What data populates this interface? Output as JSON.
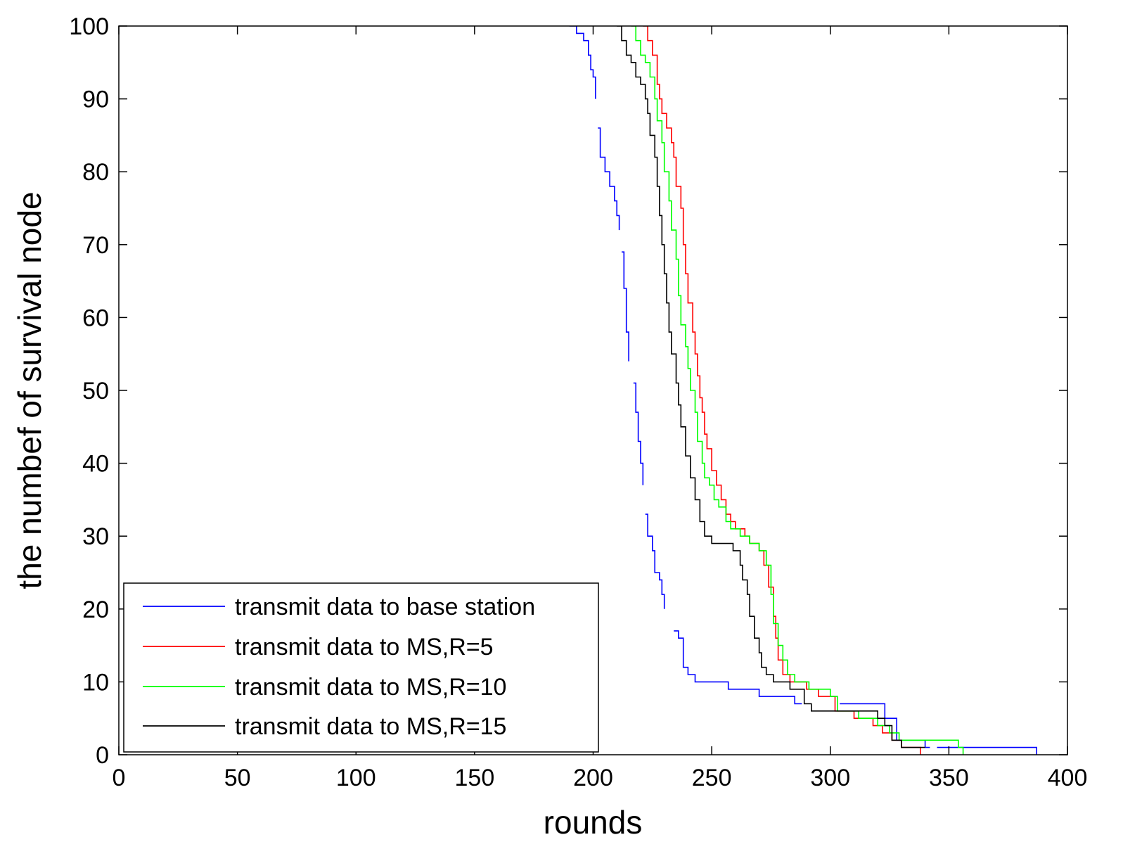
{
  "chart_data": {
    "type": "line",
    "title": "",
    "xlabel": "rounds",
    "ylabel": "the numbef of survival node",
    "xlim": [
      0,
      400
    ],
    "ylim": [
      0,
      100
    ],
    "xticks": [
      0,
      50,
      100,
      150,
      200,
      250,
      300,
      350,
      400
    ],
    "yticks": [
      0,
      10,
      20,
      30,
      40,
      50,
      60,
      70,
      80,
      90,
      100
    ],
    "grid": false,
    "legend_position": "bottom-left",
    "series": [
      {
        "name": "transmit data to base station",
        "color": "#0000ff",
        "segments": [
          [
            [
              190,
              100
            ],
            [
              193,
              99
            ],
            [
              196,
              98
            ],
            [
              198,
              96
            ],
            [
              199,
              94
            ],
            [
              200,
              93
            ],
            [
              201,
              90
            ]
          ],
          [
            [
              202,
              86
            ],
            [
              203,
              82
            ],
            [
              205,
              80
            ],
            [
              207,
              78
            ],
            [
              209,
              76
            ],
            [
              210,
              74
            ],
            [
              211,
              72
            ]
          ],
          [
            [
              212,
              69
            ],
            [
              213,
              64
            ],
            [
              214,
              58
            ],
            [
              215,
              54
            ]
          ],
          [
            [
              217,
              51
            ],
            [
              218,
              47
            ],
            [
              219,
              43
            ],
            [
              220,
              40
            ],
            [
              221,
              37
            ]
          ],
          [
            [
              222,
              33
            ],
            [
              223,
              30
            ],
            [
              225,
              28
            ],
            [
              226,
              25
            ],
            [
              228,
              24
            ],
            [
              229,
              22
            ],
            [
              230,
              20
            ]
          ],
          [
            [
              234,
              17
            ],
            [
              236,
              16
            ],
            [
              238,
              12
            ],
            [
              240,
              11
            ],
            [
              243,
              10
            ],
            [
              255,
              10
            ],
            [
              257,
              9
            ],
            [
              268,
              9
            ],
            [
              270,
              8
            ],
            [
              283,
              8
            ],
            [
              285,
              7
            ],
            [
              288,
              7
            ]
          ],
          [
            [
              304,
              7
            ],
            [
              322,
              7
            ],
            [
              323,
              5
            ],
            [
              328,
              2
            ],
            [
              340,
              1
            ],
            [
              342,
              1
            ]
          ],
          [
            [
              345,
              1
            ],
            [
              386,
              1
            ],
            [
              387,
              0
            ]
          ]
        ]
      },
      {
        "name": "transmit data to MS,R=5",
        "color": "#ff0000",
        "segments": [
          [
            [
              221,
              100
            ],
            [
              223,
              98
            ],
            [
              225,
              96
            ],
            [
              227,
              92
            ],
            [
              228,
              90
            ],
            [
              229,
              88
            ],
            [
              231,
              86
            ],
            [
              233,
              84
            ],
            [
              234,
              82
            ],
            [
              235,
              78
            ],
            [
              237,
              75
            ],
            [
              238,
              70
            ],
            [
              239,
              66
            ],
            [
              240,
              62
            ],
            [
              242,
              58
            ],
            [
              243,
              55
            ],
            [
              244,
              52
            ],
            [
              245,
              49
            ],
            [
              246,
              47
            ],
            [
              247,
              44
            ],
            [
              248,
              42
            ],
            [
              250,
              39
            ],
            [
              252,
              37
            ],
            [
              254,
              35
            ],
            [
              256,
              33
            ],
            [
              258,
              32
            ],
            [
              260,
              31
            ],
            [
              264,
              30
            ],
            [
              266,
              29
            ],
            [
              270,
              28
            ],
            [
              272,
              26
            ],
            [
              274,
              23
            ],
            [
              276,
              19
            ],
            [
              277,
              16
            ],
            [
              278,
              13
            ],
            [
              280,
              11
            ],
            [
              283,
              10
            ],
            [
              290,
              9
            ],
            [
              295,
              8
            ],
            [
              302,
              6
            ],
            [
              310,
              5
            ],
            [
              318,
              4
            ],
            [
              322,
              3
            ],
            [
              326,
              2
            ],
            [
              330,
              1
            ],
            [
              336,
              1
            ],
            [
              338,
              0
            ]
          ]
        ]
      },
      {
        "name": "transmit data to MS,R=10",
        "color": "#00ff00",
        "segments": [
          [
            [
              216,
              100
            ],
            [
              218,
              98
            ],
            [
              220,
              96
            ],
            [
              222,
              95
            ],
            [
              224,
              93
            ],
            [
              226,
              90
            ],
            [
              227,
              87
            ],
            [
              229,
              84
            ],
            [
              230,
              80
            ],
            [
              232,
              76
            ],
            [
              233,
              72
            ],
            [
              235,
              68
            ],
            [
              236,
              63
            ],
            [
              237,
              59
            ],
            [
              239,
              56
            ],
            [
              240,
              53
            ],
            [
              241,
              50
            ],
            [
              243,
              47
            ],
            [
              244,
              43
            ],
            [
              246,
              40
            ],
            [
              247,
              38
            ],
            [
              249,
              37
            ],
            [
              251,
              35
            ],
            [
              253,
              34
            ],
            [
              256,
              32
            ],
            [
              258,
              31
            ],
            [
              262,
              30
            ],
            [
              266,
              29
            ],
            [
              270,
              28
            ],
            [
              273,
              26
            ],
            [
              275,
              22
            ],
            [
              276,
              18
            ],
            [
              278,
              15
            ],
            [
              280,
              13
            ],
            [
              282,
              11
            ],
            [
              285,
              10
            ],
            [
              291,
              9
            ],
            [
              300,
              8
            ],
            [
              303,
              6
            ],
            [
              312,
              5
            ],
            [
              320,
              4
            ],
            [
              325,
              3
            ],
            [
              329,
              2
            ],
            [
              340,
              2
            ],
            [
              352,
              2
            ],
            [
              354,
              1
            ],
            [
              356,
              0
            ]
          ]
        ]
      },
      {
        "name": "transmit data to MS,R=15",
        "color": "#000000",
        "segments": [
          [
            [
              210,
              100
            ],
            [
              212,
              98
            ],
            [
              214,
              96
            ],
            [
              216,
              95
            ],
            [
              218,
              93
            ],
            [
              220,
              92
            ],
            [
              222,
              90
            ],
            [
              223,
              88
            ],
            [
              224,
              85
            ],
            [
              226,
              82
            ],
            [
              227,
              78
            ],
            [
              228,
              74
            ],
            [
              229,
              70
            ],
            [
              230,
              66
            ],
            [
              231,
              62
            ],
            [
              232,
              58
            ],
            [
              233,
              55
            ],
            [
              235,
              51
            ],
            [
              236,
              48
            ],
            [
              237,
              45
            ],
            [
              239,
              41
            ],
            [
              241,
              38
            ],
            [
              243,
              35
            ],
            [
              245,
              32
            ],
            [
              247,
              30
            ],
            [
              250,
              29
            ],
            [
              256,
              29
            ],
            [
              259,
              28
            ],
            [
              262,
              26
            ],
            [
              263,
              24
            ],
            [
              265,
              22
            ],
            [
              266,
              19
            ],
            [
              268,
              16
            ],
            [
              270,
              14
            ],
            [
              271,
              12
            ],
            [
              273,
              11
            ],
            [
              276,
              10
            ],
            [
              283,
              9
            ],
            [
              289,
              7
            ],
            [
              292,
              6
            ],
            [
              310,
              6
            ],
            [
              320,
              5
            ],
            [
              323,
              4
            ],
            [
              326,
              2
            ],
            [
              330,
              1
            ],
            [
              340,
              1
            ]
          ]
        ]
      }
    ]
  }
}
